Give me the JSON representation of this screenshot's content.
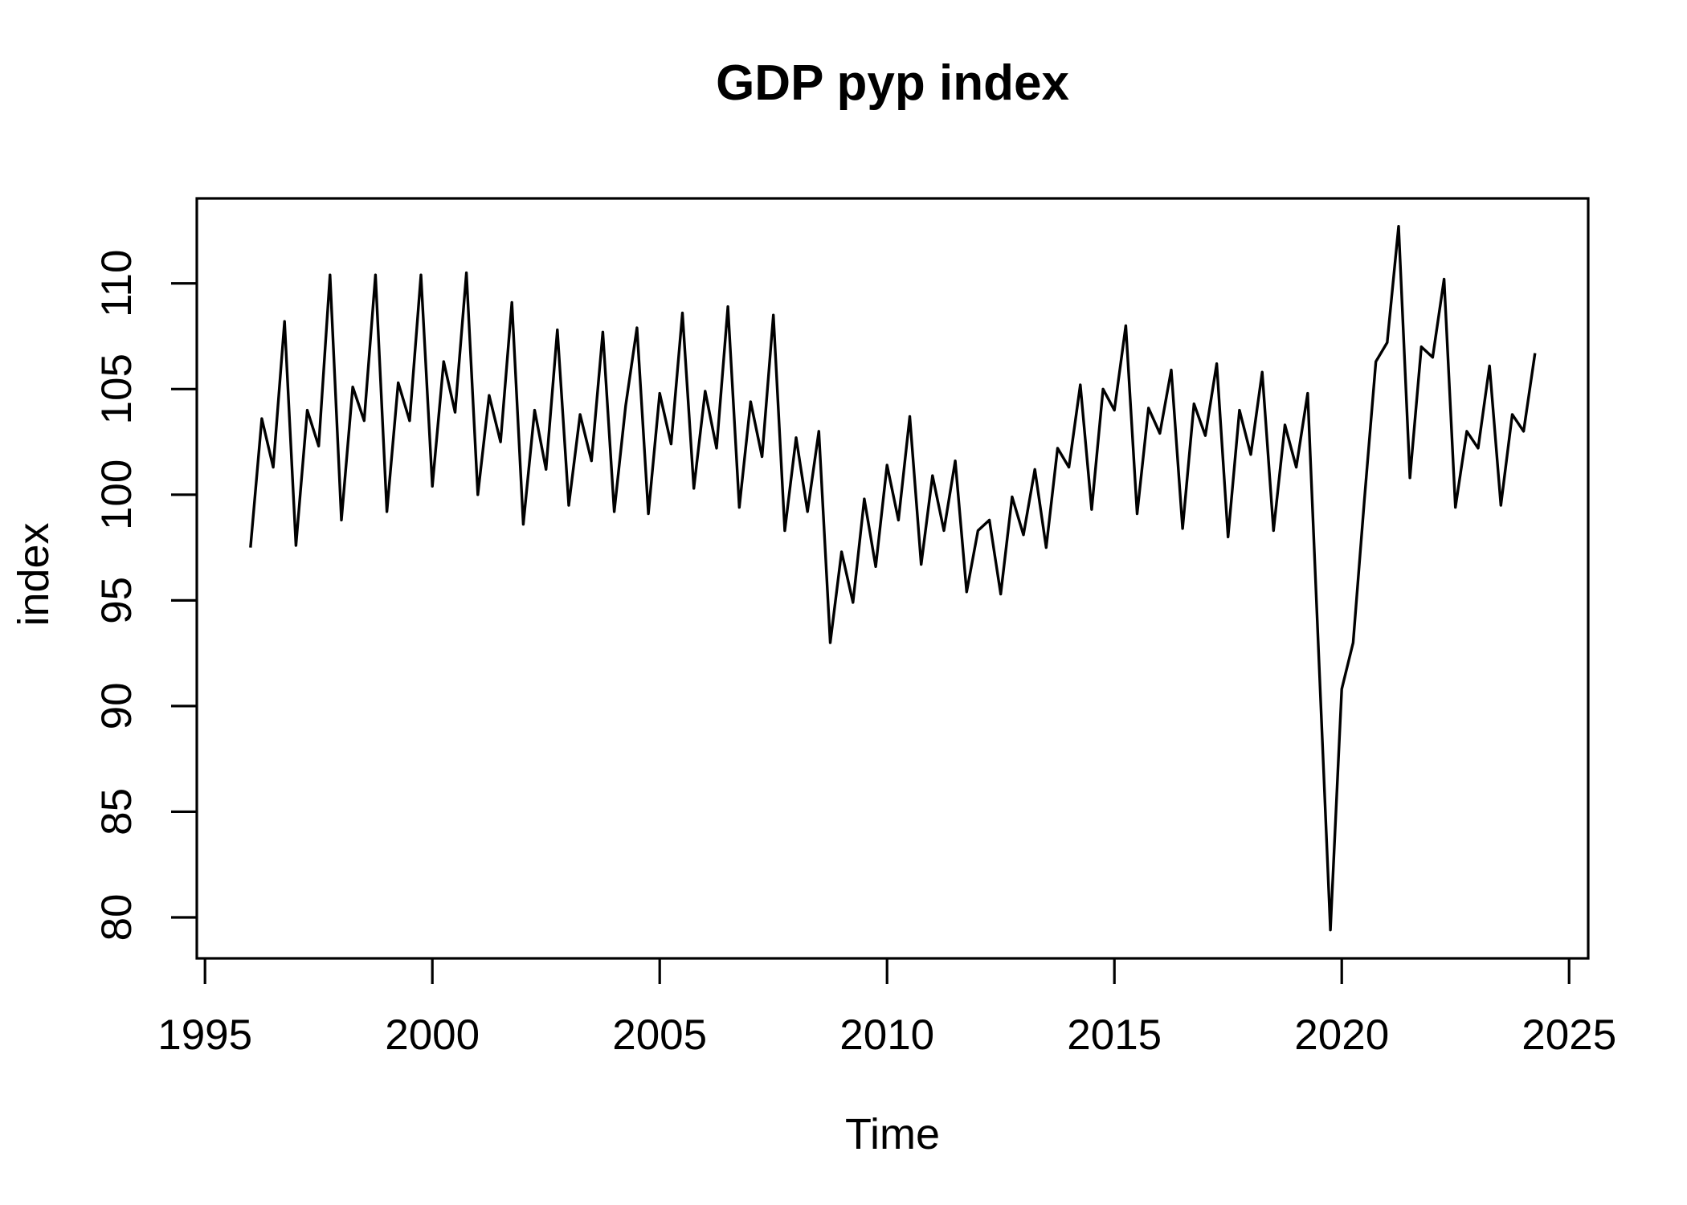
{
  "chart_data": {
    "type": "line",
    "title": "GDP pyp index",
    "xlabel": "Time",
    "ylabel": "index",
    "series": [
      {
        "name": "GDP pyp index",
        "frequency": "quarterly",
        "x_start": 1996.0,
        "x_step": 0.25,
        "values": [
          97.5,
          103.6,
          101.3,
          108.2,
          97.6,
          104.0,
          102.3,
          110.4,
          98.8,
          105.1,
          103.5,
          110.4,
          99.2,
          105.3,
          103.5,
          110.4,
          100.4,
          106.3,
          103.9,
          110.5,
          100.0,
          104.7,
          102.5,
          109.1,
          98.6,
          104.0,
          101.2,
          107.8,
          99.5,
          103.8,
          101.6,
          107.7,
          99.2,
          104.2,
          107.9,
          99.1,
          104.8,
          102.4,
          108.6,
          100.3,
          104.9,
          102.2,
          108.9,
          99.4,
          104.4,
          101.8,
          108.5,
          98.3,
          102.7,
          99.2,
          103.0,
          93.0,
          97.3,
          94.9,
          99.8,
          96.6,
          101.4,
          98.8,
          103.7,
          96.7,
          100.9,
          98.3,
          101.6,
          95.4,
          98.3,
          98.8,
          95.3,
          99.9,
          98.1,
          101.2,
          97.5,
          102.2,
          101.3,
          105.2,
          99.3,
          105.0,
          104.0,
          108.0,
          99.1,
          104.1,
          102.9,
          105.9,
          98.4,
          104.3,
          102.8,
          106.2,
          98.0,
          104.0,
          101.9,
          105.8,
          98.3,
          103.3,
          101.3,
          104.8,
          92.1,
          79.4,
          90.8,
          93.0,
          99.8,
          106.3,
          107.2,
          112.7,
          100.8,
          107.0,
          106.5,
          110.2,
          99.4,
          103.0,
          102.2,
          106.1,
          99.5,
          103.8,
          103.0,
          106.7
        ]
      }
    ],
    "x_ticks": [
      1995,
      2000,
      2005,
      2010,
      2015,
      2020,
      2025
    ],
    "y_ticks": [
      80,
      85,
      90,
      95,
      100,
      105,
      110
    ],
    "xlim": [
      1994.82,
      2025.42
    ],
    "ylim": [
      78.06,
      114.02
    ],
    "line_color": "#000000",
    "axis_color": "#000000",
    "background_color": "#ffffff",
    "grid": false,
    "legend_position": "none"
  }
}
